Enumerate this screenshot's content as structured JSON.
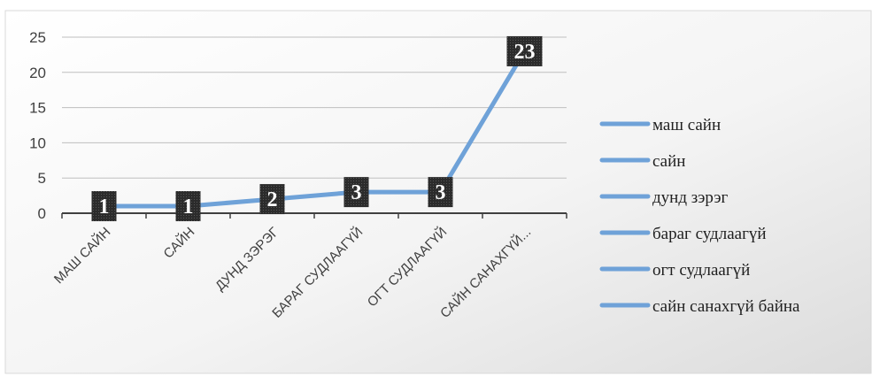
{
  "chart_data": {
    "type": "line",
    "categories": [
      "МАШ САЙН",
      "САЙН",
      "ДУНД ЗЭРЭГ",
      "БАРАГ СУДЛААГҮЙ",
      "ОГТ СУДЛААГҮЙ",
      "САЙН САНАХГҮЙ..."
    ],
    "series": [
      {
        "values": [
          1,
          1,
          2,
          3,
          3,
          23
        ]
      }
    ],
    "data_labels": [
      "1",
      "1",
      "2",
      "3",
      "3",
      "23"
    ],
    "yticks": [
      "0",
      "5",
      "10",
      "15",
      "20",
      "25"
    ],
    "ylim": [
      0,
      25
    ],
    "grid": true,
    "legend": {
      "position": "right",
      "entries": [
        "маш сайн",
        "сайн",
        "дунд зэрэг",
        "бараг судлаагүй",
        "огт судлаагүй",
        "сайн санахгүй байна"
      ]
    },
    "colors": {
      "line": "#6fa2d8",
      "legend_line": "#6fa2d8",
      "grid": "#bfbfbf",
      "axis": "#404040",
      "label_box": "#2b2b2b"
    }
  }
}
